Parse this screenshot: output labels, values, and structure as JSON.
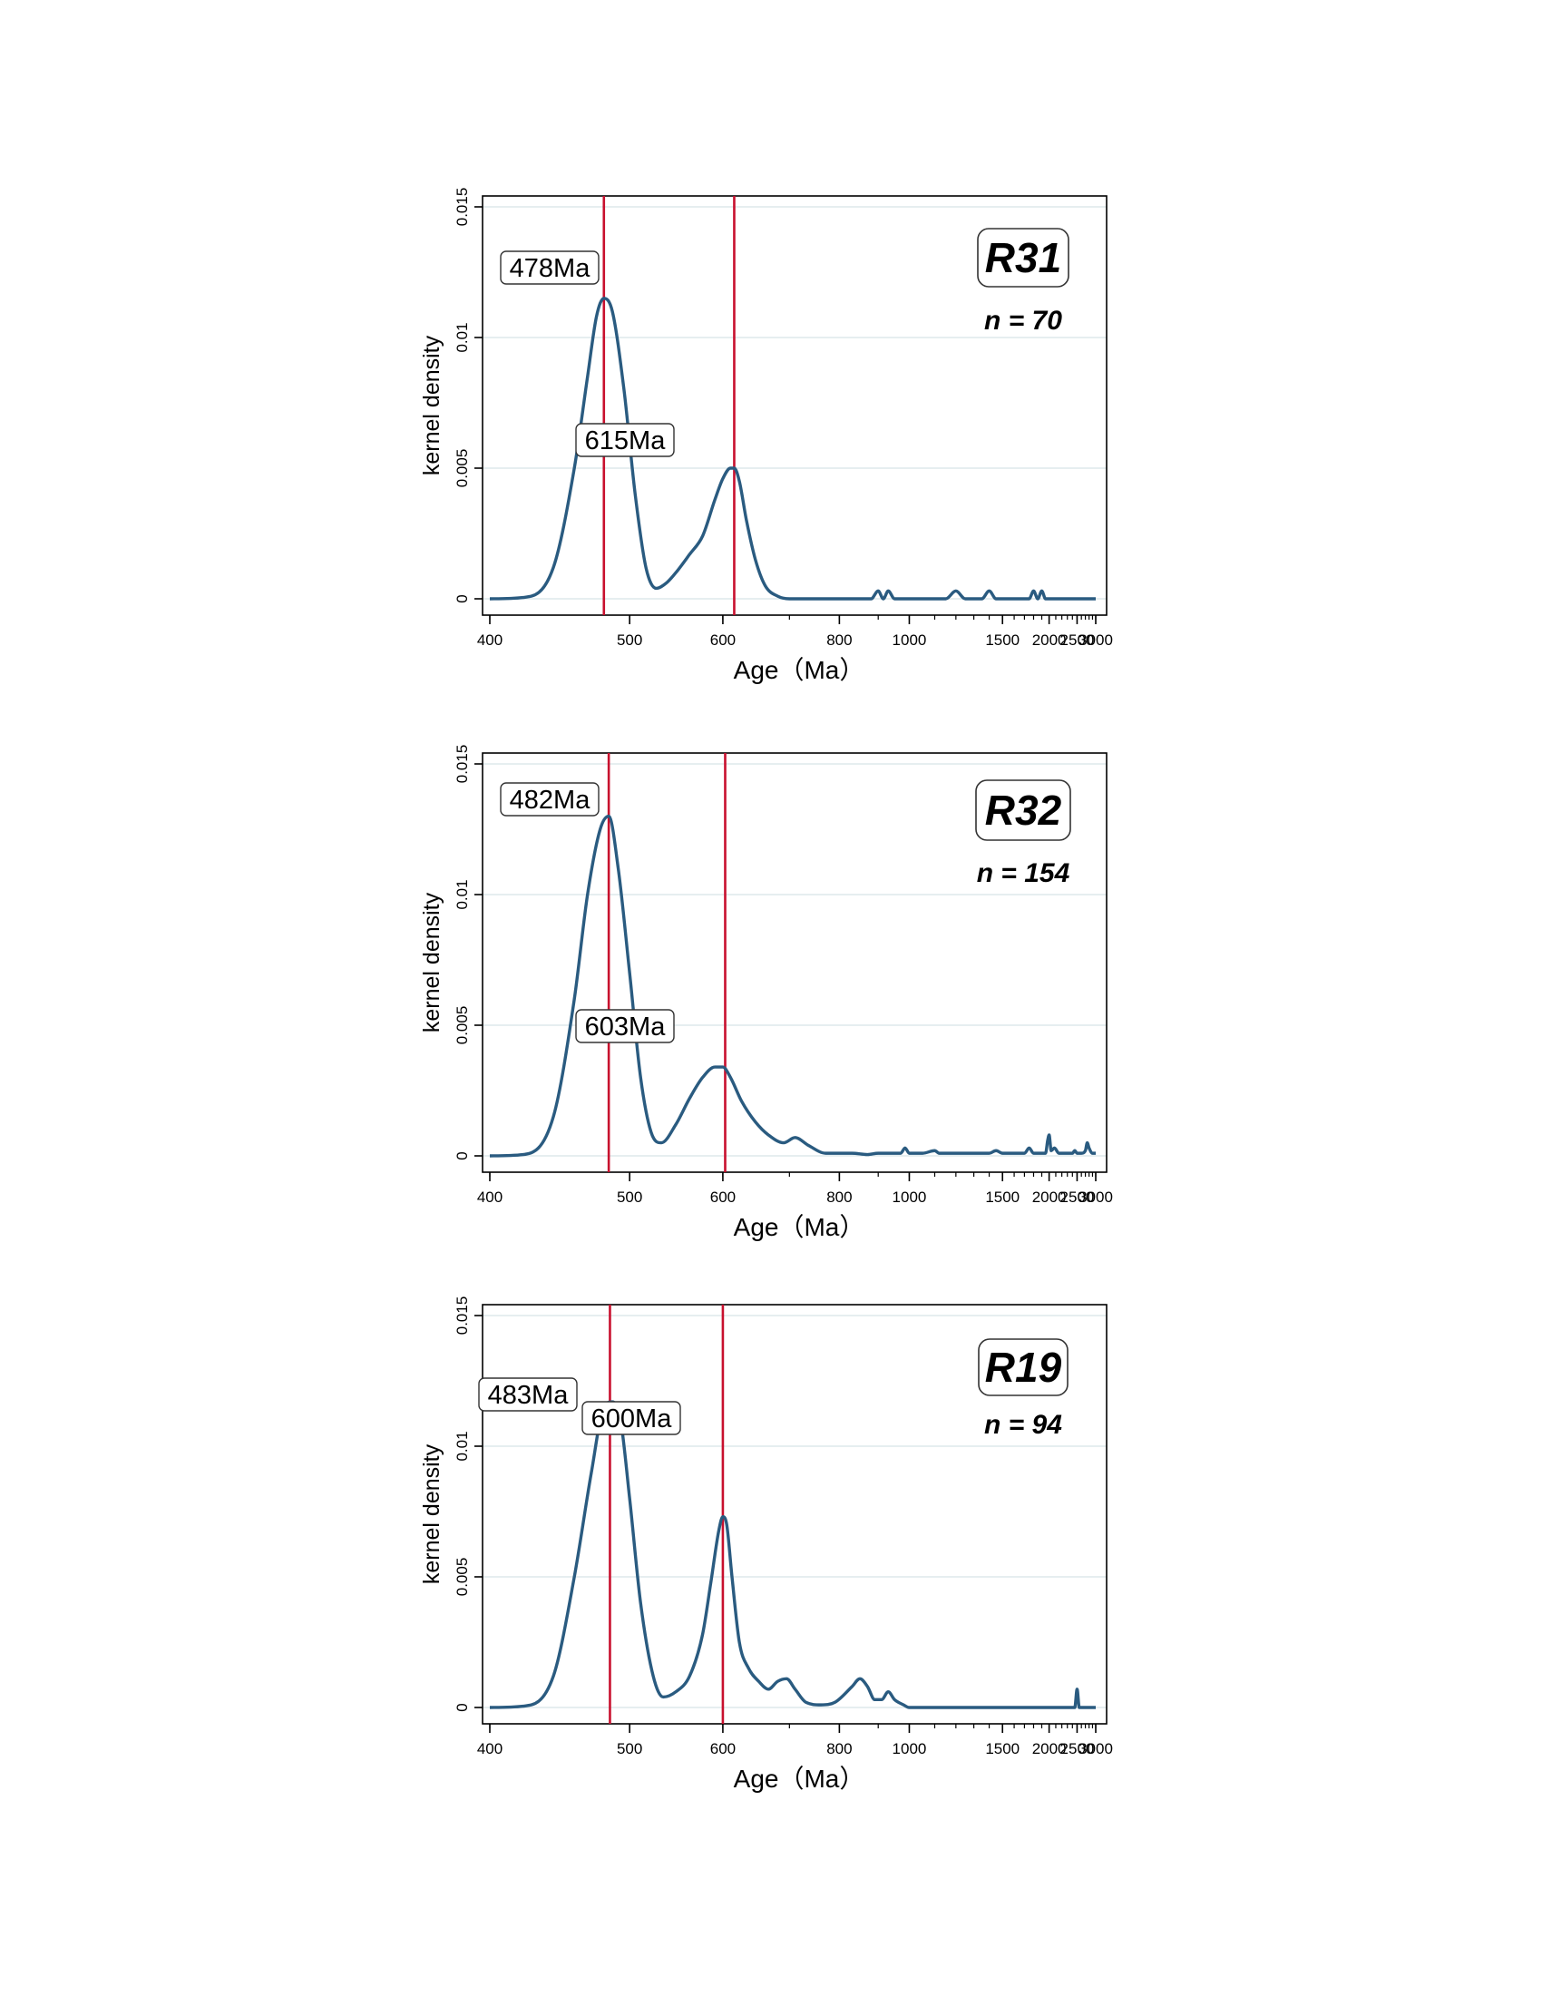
{
  "chart_data": [
    {
      "type": "line",
      "sample": "R31",
      "n_label": "n = 70",
      "xlabel": "Age（Ma）",
      "ylabel": "kernel density",
      "x_scale": "reciprocal",
      "xlim": [
        400,
        3000
      ],
      "ylim": [
        0,
        0.015
      ],
      "x_ticks": [
        400,
        500,
        600,
        800,
        1000,
        1500,
        2000,
        2500,
        3000
      ],
      "y_ticks": [
        0,
        0.005,
        0.01,
        0.015
      ],
      "y_tick_labels": [
        "0",
        "0.005",
        "0.01",
        "0.015"
      ],
      "grid": "horizontal",
      "line_color": "#2a5b80",
      "marker_color": "#c8102e",
      "peaks": [
        {
          "age": 478,
          "label": "478Ma"
        },
        {
          "age": 615,
          "label": "615Ma"
        }
      ],
      "series": [
        {
          "x": [
            400,
            420,
            440,
            455,
            465,
            472,
            478,
            485,
            495,
            505,
            515,
            525,
            535,
            545,
            560,
            575,
            590,
            600,
            610,
            615,
            622,
            632,
            645,
            660,
            680,
            700,
            730,
            760,
            800,
            850,
            880,
            900,
            915,
            930,
            950,
            965,
            985,
            1050,
            1150,
            1200,
            1250,
            1350,
            1400,
            1450,
            1600,
            1750,
            1800,
            1850,
            1900,
            1950,
            2000,
            2200,
            2500,
            3000
          ],
          "y": [
            0,
            5e-05,
            0.0012,
            0.005,
            0.0085,
            0.0108,
            0.0115,
            0.011,
            0.008,
            0.004,
            0.0012,
            0.0004,
            0.0006,
            0.001,
            0.0017,
            0.0024,
            0.0038,
            0.0046,
            0.005,
            0.005,
            0.0045,
            0.003,
            0.0015,
            0.0005,
            0.0001,
            0,
            0,
            0,
            0,
            0,
            0,
            0.0003,
            0,
            0.0003,
            0,
            0,
            0,
            0,
            0,
            0.0003,
            0,
            0,
            0.0003,
            0,
            0,
            0,
            0.0003,
            0,
            0.0003,
            0,
            0,
            0,
            0,
            0
          ]
        }
      ]
    },
    {
      "type": "line",
      "sample": "R32",
      "n_label": "n = 154",
      "xlabel": "Age（Ma）",
      "ylabel": "kernel density",
      "x_scale": "reciprocal",
      "xlim": [
        400,
        3000
      ],
      "ylim": [
        0,
        0.015
      ],
      "x_ticks": [
        400,
        500,
        600,
        800,
        1000,
        1500,
        2000,
        2500,
        3000
      ],
      "y_ticks": [
        0,
        0.005,
        0.01,
        0.015
      ],
      "y_tick_labels": [
        "0",
        "0.005",
        "0.01",
        "0.015"
      ],
      "grid": "horizontal",
      "line_color": "#2a5b80",
      "marker_color": "#c8102e",
      "peaks": [
        {
          "age": 482,
          "label": "482Ma"
        },
        {
          "age": 603,
          "label": "603Ma"
        }
      ],
      "series": [
        {
          "x": [
            400,
            420,
            440,
            455,
            465,
            475,
            482,
            490,
            500,
            510,
            520,
            530,
            545,
            560,
            575,
            590,
            600,
            610,
            625,
            645,
            665,
            690,
            710,
            735,
            770,
            800,
            830,
            870,
            900,
            940,
            970,
            985,
            1000,
            1050,
            1100,
            1120,
            1200,
            1300,
            1400,
            1450,
            1500,
            1600,
            1700,
            1750,
            1800,
            1900,
            1950,
            1980,
            2000,
            2030,
            2080,
            2150,
            2200,
            2300,
            2400,
            2450,
            2500,
            2600,
            2700,
            2750,
            2800,
            2900,
            3000
          ],
          "y": [
            0,
            5e-05,
            0.0015,
            0.006,
            0.01,
            0.0125,
            0.013,
            0.011,
            0.007,
            0.003,
            0.0009,
            0.0005,
            0.0012,
            0.0022,
            0.003,
            0.0034,
            0.0034,
            0.003,
            0.0021,
            0.0013,
            0.0008,
            0.0005,
            0.0007,
            0.0004,
            0.0001,
            0.0001,
            0.0001,
            5e-05,
            0.0001,
            0.0001,
            0.0001,
            0.0003,
            0.0001,
            0.0001,
            0.0002,
            0.0001,
            0.0001,
            0.0001,
            0.0001,
            0.0002,
            0.0001,
            0.0001,
            0.0001,
            0.0003,
            0.0001,
            0.0001,
            0.0001,
            0.0006,
            0.0008,
            0.0002,
            0.0003,
            0.0001,
            0.0001,
            0.0001,
            0.0001,
            0.0002,
            0.0001,
            0.0001,
            0.0002,
            0.0005,
            0.0003,
            0.0001,
            0.0001
          ]
        }
      ]
    },
    {
      "type": "line",
      "sample": "R19",
      "n_label": "n = 94",
      "xlabel": "Age（Ma）",
      "ylabel": "kernel density",
      "x_scale": "reciprocal",
      "xlim": [
        400,
        3000
      ],
      "ylim": [
        0,
        0.015
      ],
      "x_ticks": [
        400,
        500,
        600,
        800,
        1000,
        1500,
        2000,
        2500,
        3000
      ],
      "y_ticks": [
        0,
        0.005,
        0.01,
        0.015
      ],
      "y_tick_labels": [
        "0",
        "0.005",
        "0.01",
        "0.015"
      ],
      "grid": "horizontal",
      "line_color": "#2a5b80",
      "marker_color": "#c8102e",
      "peaks": [
        {
          "age": 483,
          "label": "483Ma"
        },
        {
          "age": 600,
          "label": "600Ma"
        }
      ],
      "series": [
        {
          "x": [
            400,
            420,
            440,
            455,
            468,
            478,
            485,
            492,
            500,
            510,
            522,
            532,
            545,
            560,
            575,
            585,
            595,
            600,
            605,
            612,
            622,
            635,
            650,
            665,
            680,
            695,
            710,
            730,
            760,
            790,
            830,
            850,
            870,
            890,
            910,
            930,
            950,
            980,
            1000,
            1200,
            1500,
            2000,
            2300,
            2450,
            2500,
            2550,
            2600,
            3000
          ],
          "y": [
            0,
            5e-05,
            0.0012,
            0.005,
            0.009,
            0.0115,
            0.0117,
            0.011,
            0.008,
            0.004,
            0.0012,
            0.0004,
            0.0006,
            0.0012,
            0.0028,
            0.0048,
            0.0068,
            0.0073,
            0.007,
            0.005,
            0.0025,
            0.0015,
            0.001,
            0.0007,
            0.001,
            0.0011,
            0.0007,
            0.0002,
            0.0001,
            0.0002,
            0.0008,
            0.0011,
            0.0008,
            0.0003,
            0.0003,
            0.0006,
            0.0003,
            0.0001,
            0,
            0,
            0,
            0,
            0,
            0,
            0.0007,
            0,
            0,
            0
          ]
        }
      ]
    }
  ]
}
